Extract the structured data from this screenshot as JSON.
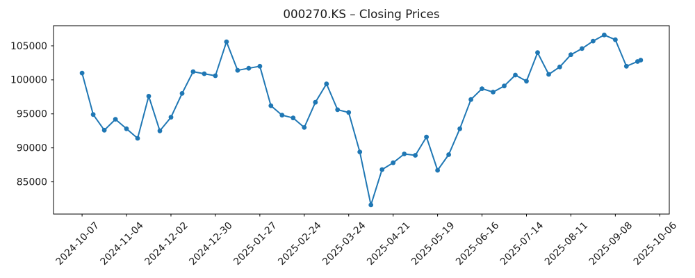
{
  "chart_data": {
    "type": "line",
    "title": "000270.KS – Closing Prices",
    "series_name": "Closing Price",
    "x": [
      "2024-10-07",
      "2024-10-14",
      "2024-10-21",
      "2024-10-28",
      "2024-11-04",
      "2024-11-11",
      "2024-11-18",
      "2024-11-25",
      "2024-12-02",
      "2024-12-09",
      "2024-12-16",
      "2024-12-23",
      "2024-12-30",
      "2025-01-06",
      "2025-01-13",
      "2025-01-20",
      "2025-01-27",
      "2025-02-03",
      "2025-02-10",
      "2025-02-17",
      "2025-02-24",
      "2025-03-03",
      "2025-03-10",
      "2025-03-17",
      "2025-03-24",
      "2025-03-31",
      "2025-04-07",
      "2025-04-14",
      "2025-04-21",
      "2025-04-28",
      "2025-05-05",
      "2025-05-12",
      "2025-05-19",
      "2025-05-26",
      "2025-06-02",
      "2025-06-09",
      "2025-06-16",
      "2025-06-23",
      "2025-06-30",
      "2025-07-07",
      "2025-07-14",
      "2025-07-21",
      "2025-07-28",
      "2025-08-04",
      "2025-08-11",
      "2025-08-18",
      "2025-08-25",
      "2025-09-01",
      "2025-09-08",
      "2025-09-15",
      "2025-09-22",
      "2025-09-24"
    ],
    "values": [
      101000,
      94900,
      92600,
      94200,
      92800,
      91400,
      97600,
      92500,
      94500,
      98000,
      101200,
      100900,
      100600,
      105600,
      101400,
      101700,
      102000,
      96200,
      94800,
      94400,
      93000,
      96700,
      99400,
      95600,
      95200,
      89400,
      81600,
      86800,
      87800,
      89100,
      88900,
      91600,
      86700,
      89000,
      92800,
      97100,
      98700,
      98200,
      99100,
      100700,
      99800,
      104000,
      100800,
      101900,
      103700,
      104600,
      105700,
      106600,
      105900,
      102000,
      102700,
      102900
    ],
    "x_tick_labels": [
      "2024-10-07",
      "2024-11-04",
      "2024-12-02",
      "2024-12-30",
      "2025-01-27",
      "2025-02-24",
      "2025-03-24",
      "2025-04-21",
      "2025-05-19",
      "2025-06-16",
      "2025-07-14",
      "2025-08-11",
      "2025-09-08",
      "2025-10-06"
    ],
    "y_tick_values": [
      85000,
      90000,
      95000,
      100000,
      105000
    ],
    "xlim": [
      "2024-09-19",
      "2025-10-12"
    ],
    "ylim": [
      80260,
      107960
    ],
    "x_tick_rotation_deg": 45,
    "grid": "off",
    "legend": "none",
    "marker": "circle",
    "colors": {
      "line": "#1f77b4",
      "marker": "#1f77b4",
      "axis": "#000000",
      "text": "#1a1a1a",
      "background": "#ffffff"
    }
  }
}
